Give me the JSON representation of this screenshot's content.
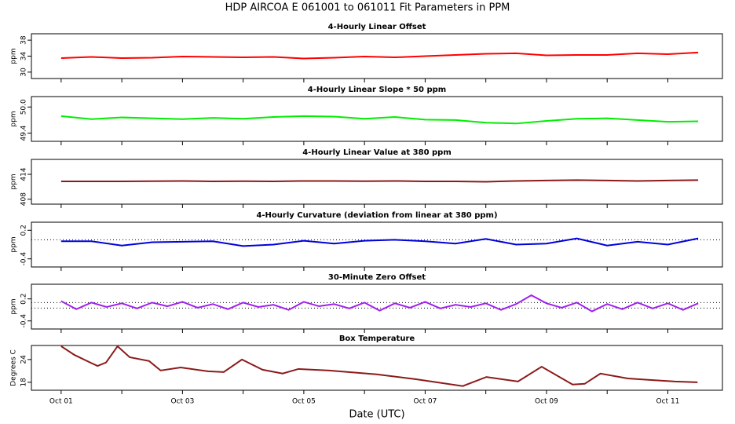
{
  "title": "HDP   AIRCOA E   061001 to 061011   Fit Parameters in PPM",
  "chart_data": [
    {
      "type": "line",
      "title": "4-Hourly Linear Offset",
      "ylabel": "ppm",
      "color": "#ff0000",
      "x": [
        0,
        0.5,
        1,
        1.5,
        2,
        2.5,
        3,
        3.5,
        4,
        4.5,
        5,
        5.5,
        6,
        6.5,
        7,
        7.5,
        8,
        8.5,
        9,
        9.5,
        10,
        10.5
      ],
      "values": [
        33.5,
        33.8,
        33.5,
        33.6,
        33.9,
        33.8,
        33.7,
        33.8,
        33.4,
        33.6,
        33.9,
        33.7,
        34.0,
        34.3,
        34.6,
        34.7,
        34.2,
        34.3,
        34.3,
        34.7,
        34.5,
        34.9
      ],
      "xlim": [
        -0.49,
        10.9
      ],
      "ylim": [
        28.4,
        39.6
      ],
      "yticks": [
        30,
        34,
        38
      ]
    },
    {
      "type": "line",
      "title": "4-Hourly Linear Slope * 50 ppm",
      "ylabel": "ppm",
      "color": "#00ee00",
      "x": [
        0,
        0.5,
        1,
        1.5,
        2,
        2.5,
        3,
        3.5,
        4,
        4.5,
        5,
        5.5,
        6,
        6.5,
        7,
        7.5,
        8,
        8.5,
        9,
        9.5,
        10,
        10.5
      ],
      "values": [
        49.79,
        49.72,
        49.76,
        49.74,
        49.72,
        49.75,
        49.73,
        49.77,
        49.79,
        49.78,
        49.73,
        49.77,
        49.71,
        49.7,
        49.64,
        49.62,
        49.68,
        49.73,
        49.74,
        49.7,
        49.66,
        49.67
      ],
      "xlim": [
        -0.49,
        10.9
      ],
      "ylim": [
        49.21,
        50.24
      ],
      "yticks": [
        49.4,
        {
          "value": 50,
          "label": "50.0"
        }
      ]
    },
    {
      "type": "line",
      "title": "4-Hourly Linear Value at 380 ppm",
      "ylabel": "ppm",
      "color": "#8b1a1a",
      "x": [
        0,
        0.5,
        1,
        1.5,
        2,
        2.5,
        3,
        3.5,
        4,
        4.5,
        5,
        5.5,
        6,
        6.5,
        7,
        7.5,
        8,
        8.5,
        9,
        9.5,
        10,
        10.5
      ],
      "values": [
        412.3,
        412.3,
        412.3,
        412.35,
        412.4,
        412.3,
        412.35,
        412.3,
        412.4,
        412.4,
        412.35,
        412.4,
        412.3,
        412.3,
        412.2,
        412.4,
        412.5,
        412.6,
        412.5,
        412.4,
        412.5,
        412.6
      ],
      "xlim": [
        -0.49,
        10.9
      ],
      "ylim": [
        406.8,
        417.6
      ],
      "yticks": [
        408,
        414
      ]
    },
    {
      "type": "line",
      "title": "4-Hourly Curvature (deviation from linear at 380 ppm)",
      "ylabel": "ppm",
      "color": "#0000dd",
      "x": [
        0,
        0.5,
        1,
        1.5,
        2,
        2.5,
        3,
        3.5,
        4,
        4.5,
        5,
        5.5,
        6,
        6.5,
        7,
        7.5,
        8,
        8.5,
        9,
        9.5,
        10,
        10.5
      ],
      "values": [
        -0.03,
        -0.03,
        -0.12,
        -0.05,
        -0.04,
        -0.03,
        -0.13,
        -0.1,
        -0.02,
        -0.08,
        -0.02,
        0.0,
        -0.03,
        -0.08,
        0.02,
        -0.1,
        -0.08,
        0.03,
        -0.12,
        -0.04,
        -0.1,
        0.03
      ],
      "xlim": [
        -0.49,
        10.9
      ],
      "ylim": [
        -0.57,
        0.37
      ],
      "yticks": [
        -0.4,
        0.2
      ],
      "hlines": [
        0
      ]
    },
    {
      "type": "line",
      "title": "30-Minute Zero Offset",
      "ylabel": "ppm",
      "color": "#a020f0",
      "x": [
        0,
        0.25,
        0.5,
        0.75,
        1,
        1.25,
        1.5,
        1.75,
        2,
        2.25,
        2.5,
        2.75,
        3,
        3.25,
        3.5,
        3.75,
        4,
        4.25,
        4.5,
        4.75,
        5,
        5.25,
        5.5,
        5.75,
        6,
        6.25,
        6.5,
        6.75,
        7,
        7.25,
        7.5,
        7.75,
        8,
        8.25,
        8.5,
        8.75,
        9,
        9.25,
        9.5,
        9.75,
        10,
        10.25,
        10.5
      ],
      "values": [
        0.14,
        -0.08,
        0.1,
        -0.02,
        0.08,
        -0.06,
        0.1,
        0.0,
        0.12,
        -0.04,
        0.06,
        -0.08,
        0.1,
        -0.02,
        0.04,
        -0.1,
        0.12,
        0.0,
        0.06,
        -0.06,
        0.1,
        -0.12,
        0.08,
        -0.04,
        0.12,
        -0.06,
        0.04,
        -0.02,
        0.08,
        -0.1,
        0.06,
        0.3,
        0.08,
        -0.04,
        0.1,
        -0.14,
        0.06,
        -0.08,
        0.1,
        -0.06,
        0.08,
        -0.1,
        0.08
      ],
      "xlim": [
        -0.49,
        10.9
      ],
      "ylim": [
        -0.62,
        0.6
      ],
      "yticks": [
        -0.4,
        0.2
      ],
      "hlines": [
        0.1,
        -0.05
      ]
    },
    {
      "type": "line",
      "title": "Box Temperature",
      "ylabel": "Degrees C",
      "color": "#8b1a1a",
      "x": [
        0,
        0.22,
        0.48,
        0.6,
        0.74,
        0.93,
        1.13,
        1.45,
        1.64,
        1.97,
        2.42,
        2.68,
        2.98,
        3.32,
        3.65,
        3.91,
        4.42,
        5.2,
        5.85,
        6.62,
        7.01,
        7.53,
        7.92,
        8.43,
        8.63,
        8.89,
        9.34,
        9.73,
        10.12,
        10.49
      ],
      "values": [
        27.5,
        25.2,
        23.2,
        22.3,
        23.2,
        27.5,
        24.6,
        23.6,
        21.1,
        21.9,
        20.9,
        20.7,
        24.0,
        21.3,
        20.3,
        21.5,
        21.1,
        20.1,
        18.8,
        17.0,
        19.4,
        18.2,
        22.1,
        17.4,
        17.6,
        20.3,
        19.0,
        18.6,
        18.2,
        18.0
      ],
      "xlim": [
        -0.49,
        10.9
      ],
      "ylim": [
        15.9,
        27.7
      ],
      "yticks": [
        18,
        24
      ],
      "xticks": [
        {
          "value": 0,
          "label": "Oct 01"
        },
        {
          "value": 2,
          "label": "Oct 03"
        },
        {
          "value": 4,
          "label": "Oct 05"
        },
        {
          "value": 6,
          "label": "Oct 07"
        },
        {
          "value": 8,
          "label": "Oct 09"
        },
        {
          "value": 10,
          "label": "Oct 11"
        }
      ],
      "xminorticks": [
        1,
        3,
        5,
        7,
        9
      ],
      "xlabel": "Date (UTC)"
    }
  ]
}
